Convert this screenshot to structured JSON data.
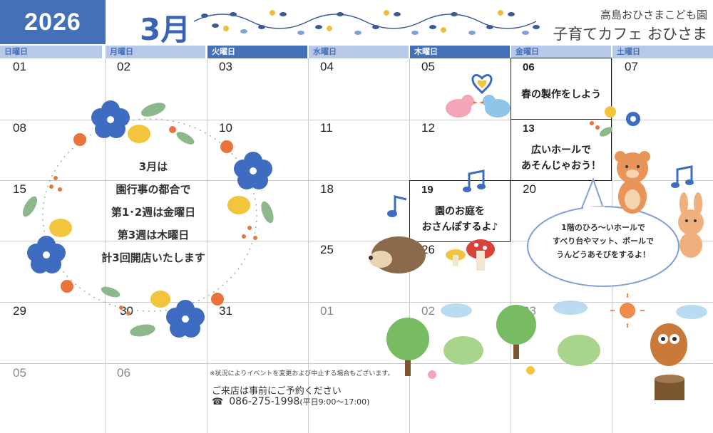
{
  "header": {
    "year": "2026",
    "month": "3月",
    "org_name": "高島おひさまこども園",
    "cafe_name": "子育てカフェ おひさま"
  },
  "weekdays": [
    "日曜日",
    "月曜日",
    "火曜日",
    "水曜日",
    "木曜日",
    "金曜日",
    "土曜日"
  ],
  "weeks": [
    [
      "01",
      "02",
      "03",
      "04",
      "05",
      "06",
      "07"
    ],
    [
      "08",
      "",
      "10",
      "11",
      "12",
      "13",
      ""
    ],
    [
      "15",
      "",
      "",
      "18",
      "",
      "20",
      ""
    ],
    [
      "",
      "",
      "",
      "25",
      "26",
      "",
      ""
    ],
    [
      "29",
      "30",
      "31",
      "01",
      "02",
      "03",
      ""
    ],
    [
      "05",
      "06",
      "",
      "",
      "",
      "",
      ""
    ]
  ],
  "events": [
    {
      "day": "06",
      "text": "春の製作をしよう"
    },
    {
      "day": "13",
      "text1": "広いホールで",
      "text2": "あそんじゃおう！"
    },
    {
      "day": "19",
      "text1": "園のお庭を",
      "text2": "おさんぽするよ♪"
    }
  ],
  "notice": {
    "line1": "3月は",
    "line2": "園行事の都合で",
    "line3": "第1･2週は金曜日",
    "line4": "第3週は木曜日",
    "line5": "計3回開店いたします"
  },
  "bubble": {
    "line1": "1階のひろ～いホールで",
    "line2": "すべり台やマット、ボールで",
    "line3": "うんどうあそびをするよ！"
  },
  "footer": {
    "disclaimer": "※状況によりイベントを変更および中止する場合もございます。",
    "reservation": "ご来店は事前にご予約ください",
    "phone_icon": "telephone-icon",
    "phone": "086-275-1998",
    "hours": "(平日9:00～17:00)"
  },
  "colors": {
    "primary_blue": "#4470b8",
    "light_blue": "#b7c8e8",
    "grid": "#cccccc"
  }
}
